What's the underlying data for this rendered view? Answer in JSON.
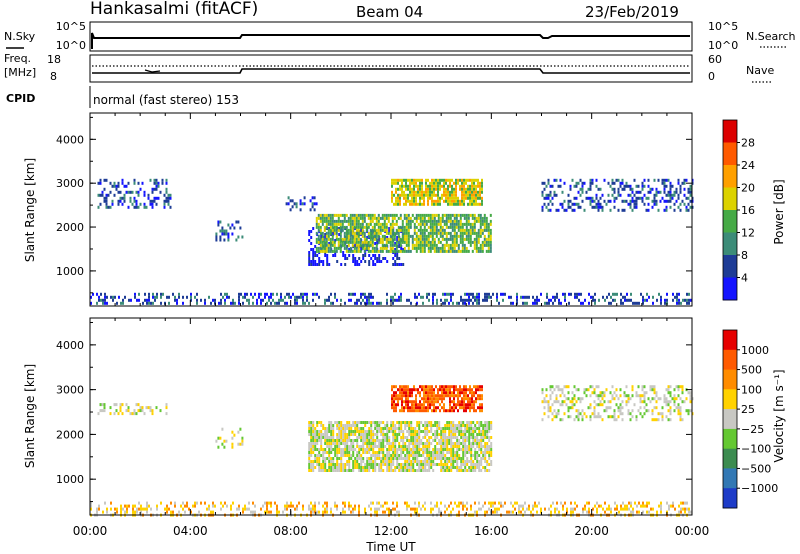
{
  "header": {
    "station": "Hankasalmi (fitACF)",
    "beam": "Beam 04",
    "date": "23/Feb/2019"
  },
  "panels": {
    "nsky_label": "N.Sky",
    "nsky_ticks": [
      "10^5",
      "10^0"
    ],
    "nsearch_label": "N.Search",
    "nsearch_ticks": [
      "10^5",
      "10^0"
    ],
    "freq_label_1": "Freq.",
    "freq_label_2": "[MHz]",
    "freq_ticks": [
      "18",
      "8"
    ],
    "nave_label": "Nave",
    "nave_ticks": [
      "60",
      "0"
    ],
    "cpid_label": "CPID",
    "cpid_text": "normal (fast stereo) 153"
  },
  "chart_data": [
    {
      "type": "heatmap",
      "name": "power",
      "ylabel": "Slant Range [km]",
      "xlabel": "Time UT",
      "ylim": [
        200,
        4600
      ],
      "xlim_hours": [
        0,
        24
      ],
      "x_tick_labels": [
        "00:00",
        "04:00",
        "08:00",
        "12:00",
        "16:00",
        "20:00",
        "00:00"
      ],
      "y_tick_labels": [
        "1000",
        "2000",
        "3000",
        "4000"
      ],
      "colorbar": {
        "label": "Power [dB]",
        "tick_labels": [
          "4",
          "8",
          "12",
          "16",
          "20",
          "24",
          "28"
        ],
        "colors": [
          "#1414ff",
          "#1e3c96",
          "#3c8c78",
          "#46aa46",
          "#dcd200",
          "#ffa000",
          "#ff5a00",
          "#dc0000"
        ]
      },
      "regions": [
        {
          "t": [
            0.3,
            3.2
          ],
          "r": [
            2450,
            3100
          ],
          "level": 1,
          "style": "sparse"
        },
        {
          "t": [
            5.0,
            6.1
          ],
          "r": [
            1700,
            2150
          ],
          "level": 1,
          "style": "sparse"
        },
        {
          "t": [
            7.8,
            9.0
          ],
          "r": [
            2400,
            2700
          ],
          "level": 1,
          "style": "sparse"
        },
        {
          "t": [
            8.7,
            12.5
          ],
          "r": [
            1150,
            2000
          ],
          "level": 0,
          "style": "sparse"
        },
        {
          "t": [
            9.0,
            16.0
          ],
          "r": [
            1450,
            2300
          ],
          "level": 3,
          "style": "dense"
        },
        {
          "t": [
            12.0,
            15.6
          ],
          "r": [
            2500,
            3100
          ],
          "level": 4,
          "style": "dense"
        },
        {
          "t": [
            18.0,
            24.0
          ],
          "r": [
            2350,
            3100
          ],
          "level": 1,
          "style": "sparse"
        },
        {
          "t": [
            0.0,
            24.0
          ],
          "r": [
            230,
            500
          ],
          "level": 1,
          "style": "floor"
        }
      ]
    },
    {
      "type": "heatmap",
      "name": "velocity",
      "ylabel": "Slant Range [km]",
      "xlabel": "Time UT",
      "ylim": [
        200,
        4600
      ],
      "xlim_hours": [
        0,
        24
      ],
      "x_tick_labels": [
        "00:00",
        "04:00",
        "08:00",
        "12:00",
        "16:00",
        "20:00",
        "00:00"
      ],
      "y_tick_labels": [
        "1000",
        "2000",
        "3000",
        "4000"
      ],
      "colorbar": {
        "label": "Velocity [m s⁻¹]",
        "tick_labels": [
          "1000",
          "500",
          "100",
          "25",
          "−25",
          "−100",
          "−500",
          "−1000"
        ],
        "colors": [
          "#1e3cc8",
          "#3278b4",
          "#3c8c50",
          "#64c832",
          "#c8c8c3",
          "#ffd200",
          "#ff8c00",
          "#ff5a00",
          "#e60000"
        ]
      },
      "regions": [
        {
          "t": [
            0.3,
            3.2
          ],
          "r": [
            2450,
            2700
          ],
          "level": 4,
          "style": "sparse"
        },
        {
          "t": [
            5.0,
            6.1
          ],
          "r": [
            1700,
            2150
          ],
          "level": 4,
          "style": "sparse"
        },
        {
          "t": [
            8.7,
            16.0
          ],
          "r": [
            1200,
            2300
          ],
          "level": 4,
          "style": "dense"
        },
        {
          "t": [
            12.0,
            15.6
          ],
          "r": [
            2500,
            3100
          ],
          "level": 7,
          "style": "dense"
        },
        {
          "t": [
            18.0,
            24.0
          ],
          "r": [
            2350,
            3100
          ],
          "level": 4,
          "style": "sparse"
        },
        {
          "t": [
            0.0,
            24.0
          ],
          "r": [
            230,
            500
          ],
          "level": 5,
          "style": "floor"
        }
      ]
    }
  ]
}
